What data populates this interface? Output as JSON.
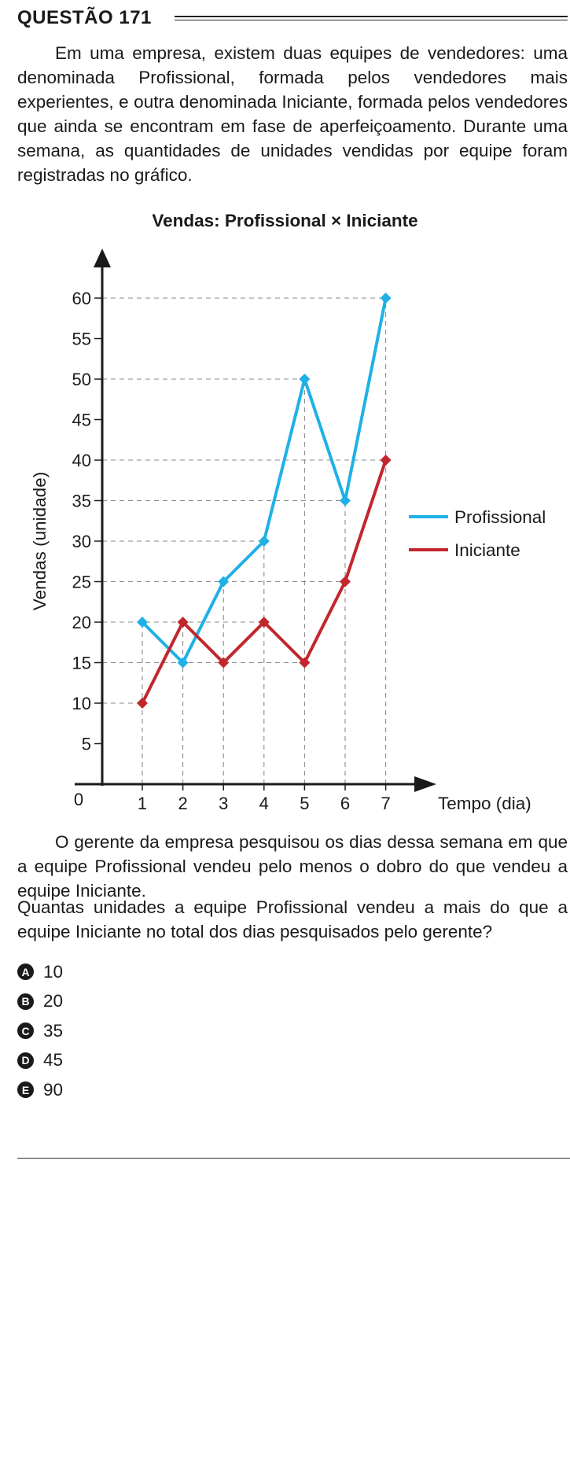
{
  "question": {
    "title": "QUESTÃO 171"
  },
  "intro": "Em uma empresa, existem duas equipes de vendedores: uma denominada Profissional, formada pelos vendedores mais experientes, e outra denominada Iniciante, formada pelos vendedores que ainda se encontram em fase de aperfeiçoamento. Durante uma semana, as quantidades de unidades vendidas por equipe foram registradas no gráfico.",
  "chart_data": {
    "type": "line",
    "title": "Vendas: Profissional × Iniciante",
    "xlabel": "Tempo (dia)",
    "ylabel": "Vendas (unidade)",
    "x": [
      1,
      2,
      3,
      4,
      5,
      6,
      7
    ],
    "x_tick_labels": [
      "1",
      "2",
      "3",
      "4",
      "5",
      "6",
      "7"
    ],
    "y_ticks": [
      5,
      10,
      15,
      20,
      25,
      30,
      35,
      40,
      45,
      50,
      55,
      60
    ],
    "origin_label": "0",
    "ylim": [
      0,
      60
    ],
    "grid": "dashed, at data values only",
    "legend_position": "right",
    "series": [
      {
        "name": "Profissional",
        "color": "#1fb1e6",
        "values": [
          20,
          15,
          25,
          30,
          50,
          35,
          60
        ]
      },
      {
        "name": "Iniciante",
        "color": "#c1272d",
        "values": [
          10,
          20,
          15,
          20,
          15,
          25,
          40
        ]
      }
    ]
  },
  "paragraph2": "O gerente da empresa pesquisou os dias dessa semana em que a equipe Profissional vendeu pelo menos o dobro do que vendeu a equipe Iniciante.",
  "question_text": "Quantas unidades a equipe Profissional vendeu a mais do que a equipe Iniciante no total dos dias pesquisados pelo gerente?",
  "options": [
    {
      "letter": "A",
      "text": "10"
    },
    {
      "letter": "B",
      "text": "20"
    },
    {
      "letter": "C",
      "text": "35"
    },
    {
      "letter": "D",
      "text": "45"
    },
    {
      "letter": "E",
      "text": "90"
    }
  ]
}
